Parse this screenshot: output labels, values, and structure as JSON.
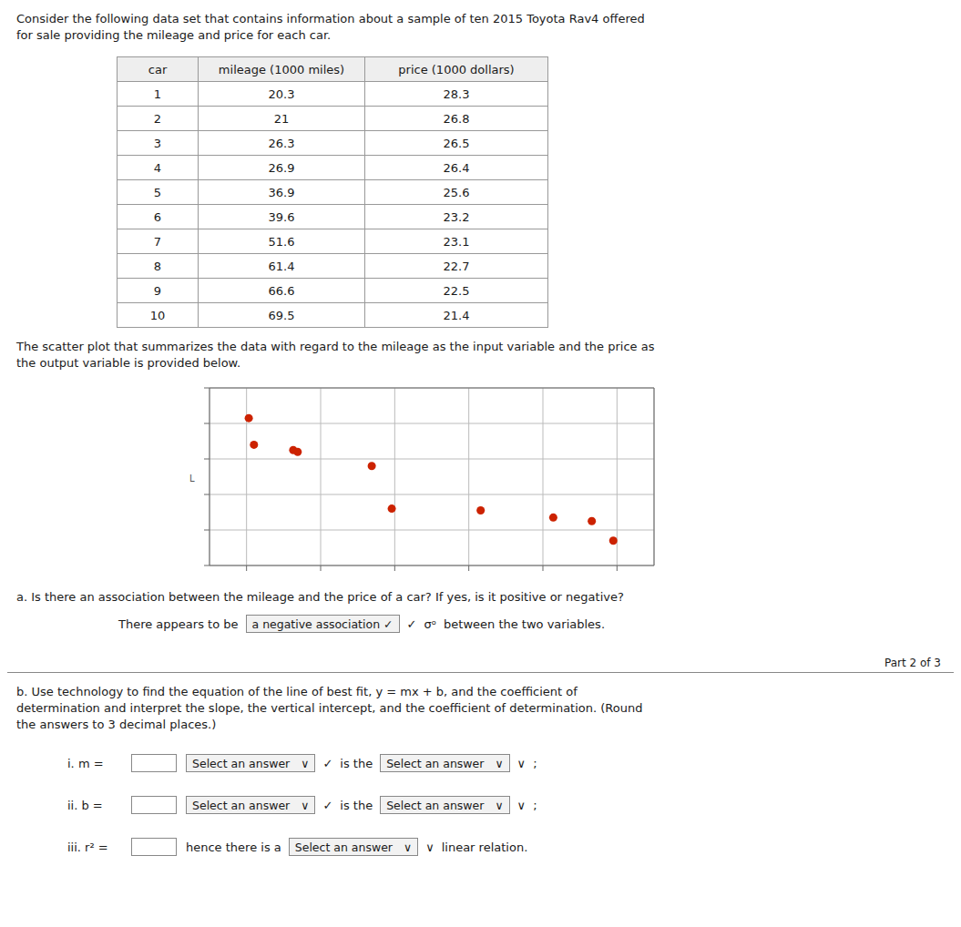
{
  "chart_data": {
    "type": "scatter",
    "title": [
      "Consider the following data set that contains information about a sample of ten 2015 Toyota Rav4 offered",
      "for sale providing the mileage and price for each car."
    ],
    "table": {
      "headers": [
        "car",
        "mileage (1000 miles)",
        "price (1000 dollars)"
      ],
      "rows": [
        [
          1,
          20.3,
          28.3
        ],
        [
          2,
          21,
          26.8
        ],
        [
          3,
          26.3,
          26.5
        ],
        [
          4,
          26.9,
          26.4
        ],
        [
          5,
          36.9,
          25.6
        ],
        [
          6,
          39.6,
          23.2
        ],
        [
          7,
          51.6,
          23.1
        ],
        [
          8,
          61.4,
          22.7
        ],
        [
          9,
          66.6,
          22.5
        ],
        [
          10,
          69.5,
          21.4
        ]
      ]
    },
    "intro": [
      "The scatter plot that summarizes the data with regard to the mileage as the input variable and the price as",
      "the output variable is provided below."
    ],
    "axis_mark": "L",
    "x": [
      20.3,
      21.0,
      26.3,
      26.9,
      36.9,
      39.6,
      51.6,
      61.4,
      66.6,
      69.5
    ],
    "values": [
      28.3,
      26.8,
      26.5,
      26.4,
      25.6,
      23.2,
      23.1,
      22.7,
      22.5,
      21.4
    ],
    "color": "#cc2200",
    "xlim": [
      15,
      75
    ],
    "ylim": [
      20,
      30
    ],
    "xticks": [
      20,
      30,
      40,
      50,
      60,
      70
    ],
    "yticks": [
      20,
      22,
      24,
      26,
      28,
      30
    ],
    "grid": true,
    "tick_labels": false,
    "part_a_question": "a. Is there an association between the mileage and the price of a car? If yes, is it positive or negative?",
    "part_a_answer": [
      "There appears to be",
      {
        "dropdown": "a negative association ✓"
      },
      "✓",
      "σᵒ",
      "between the two variables."
    ],
    "part_label": "Part 2 of 3",
    "part_b": [
      "b. Use technology to find the equation of the line of best fit, y = mx + b, and the coefficient of",
      "determination and interpret the slope, the vertical intercept, and the coefficient of determination. (Round",
      "the answers to 3 decimal places.)"
    ],
    "items": [
      {
        "label": "i. m =",
        "after_input": [
          {
            "dropdown": "Select an answer",
            "arrow": "∨"
          },
          "✓",
          "is the",
          {
            "dropdown": "Select an answer",
            "arrow": "∨"
          },
          "∨  ;"
        ]
      },
      {
        "label": "ii. b =",
        "after_input": [
          {
            "dropdown": "Select an answer",
            "arrow": "∨"
          },
          "✓",
          "is the",
          {
            "dropdown": "Select an answer",
            "arrow": "∨"
          },
          "∨  ;"
        ]
      },
      {
        "label": "iii. r² =",
        "after_input": [
          "hence there is a",
          {
            "dropdown": "Select an answer",
            "arrow": "∨"
          },
          "∨",
          "linear relation."
        ]
      }
    ]
  }
}
